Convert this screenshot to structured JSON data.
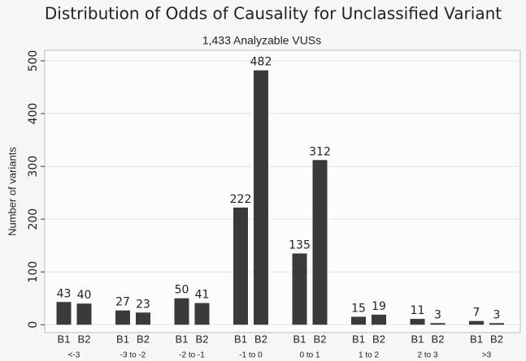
{
  "chart_data": {
    "type": "bar",
    "title": "Distribution of Odds of Causality for Unclassified Variant",
    "subtitle": "1,433 Analyzable VUSs",
    "y_label": "Number of variants",
    "categories": [
      "<-3",
      "-3  to -2",
      "-2 to -1",
      "-1 to 0",
      "0 to 1",
      "1 to 2",
      "2 to 3",
      ">3"
    ],
    "series": [
      {
        "name": "B1",
        "color": "#3a3a3a",
        "values": [
          43,
          27,
          50,
          222,
          135,
          15,
          11,
          7
        ]
      },
      {
        "name": "B2",
        "color": "#3a3a3a",
        "values": [
          40,
          23,
          41,
          482,
          312,
          19,
          3,
          3
        ]
      }
    ],
    "ylim": [
      -15,
      520
    ],
    "yticks": [
      0,
      100,
      200,
      300,
      400,
      500
    ],
    "grid": true
  }
}
